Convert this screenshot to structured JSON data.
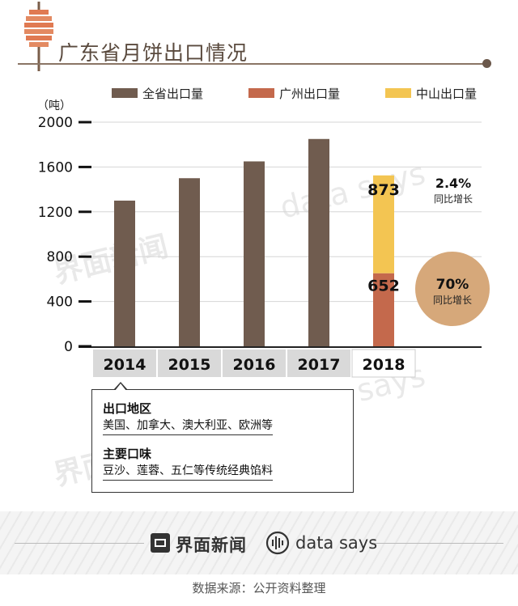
{
  "header": {
    "title": "广东省月饼出口情况"
  },
  "chart_data": {
    "type": "bar",
    "unit_label": "（吨）",
    "categories": [
      "2014",
      "2015",
      "2016",
      "2017",
      "2018"
    ],
    "series": [
      {
        "name": "全省出口量",
        "values": [
          1300,
          1500,
          1650,
          1850,
          null
        ]
      },
      {
        "name": "广州出口量",
        "values": [
          null,
          null,
          null,
          null,
          652
        ]
      },
      {
        "name": "中山出口量",
        "values": [
          null,
          null,
          null,
          null,
          873
        ]
      }
    ],
    "data_labels": {
      "guangzhou_2018": "652",
      "zhongshan_2018": "873"
    },
    "yticks": [
      "0",
      "400",
      "800",
      "1200",
      "1600",
      "2000"
    ],
    "ylim": [
      0,
      2000
    ],
    "stacked_category": "2018",
    "annotations": [
      {
        "value": "2.4%",
        "label": "同比增长"
      },
      {
        "value": "70%",
        "label": "同比增长"
      }
    ],
    "colors": {
      "province": "#705c4f",
      "guangzhou": "#c4694c",
      "zhongshan": "#f3c552",
      "growth_circle": "#d6a87a",
      "xaxis_band": "#d9d9d9"
    }
  },
  "callout": {
    "export_region_title": "出口地区",
    "export_region_text": "美国、加拿大、澳大利亚、欧洲等",
    "flavor_title": "主要口味",
    "flavor_text": "豆沙、莲蓉、五仁等传统经典馅料"
  },
  "footer": {
    "brand_cn": "界面新闻",
    "brand_en": "data says",
    "source": "数据来源：公开资料整理",
    "icons": [
      "jiemian-logo-icon",
      "data-says-logo-icon"
    ]
  }
}
